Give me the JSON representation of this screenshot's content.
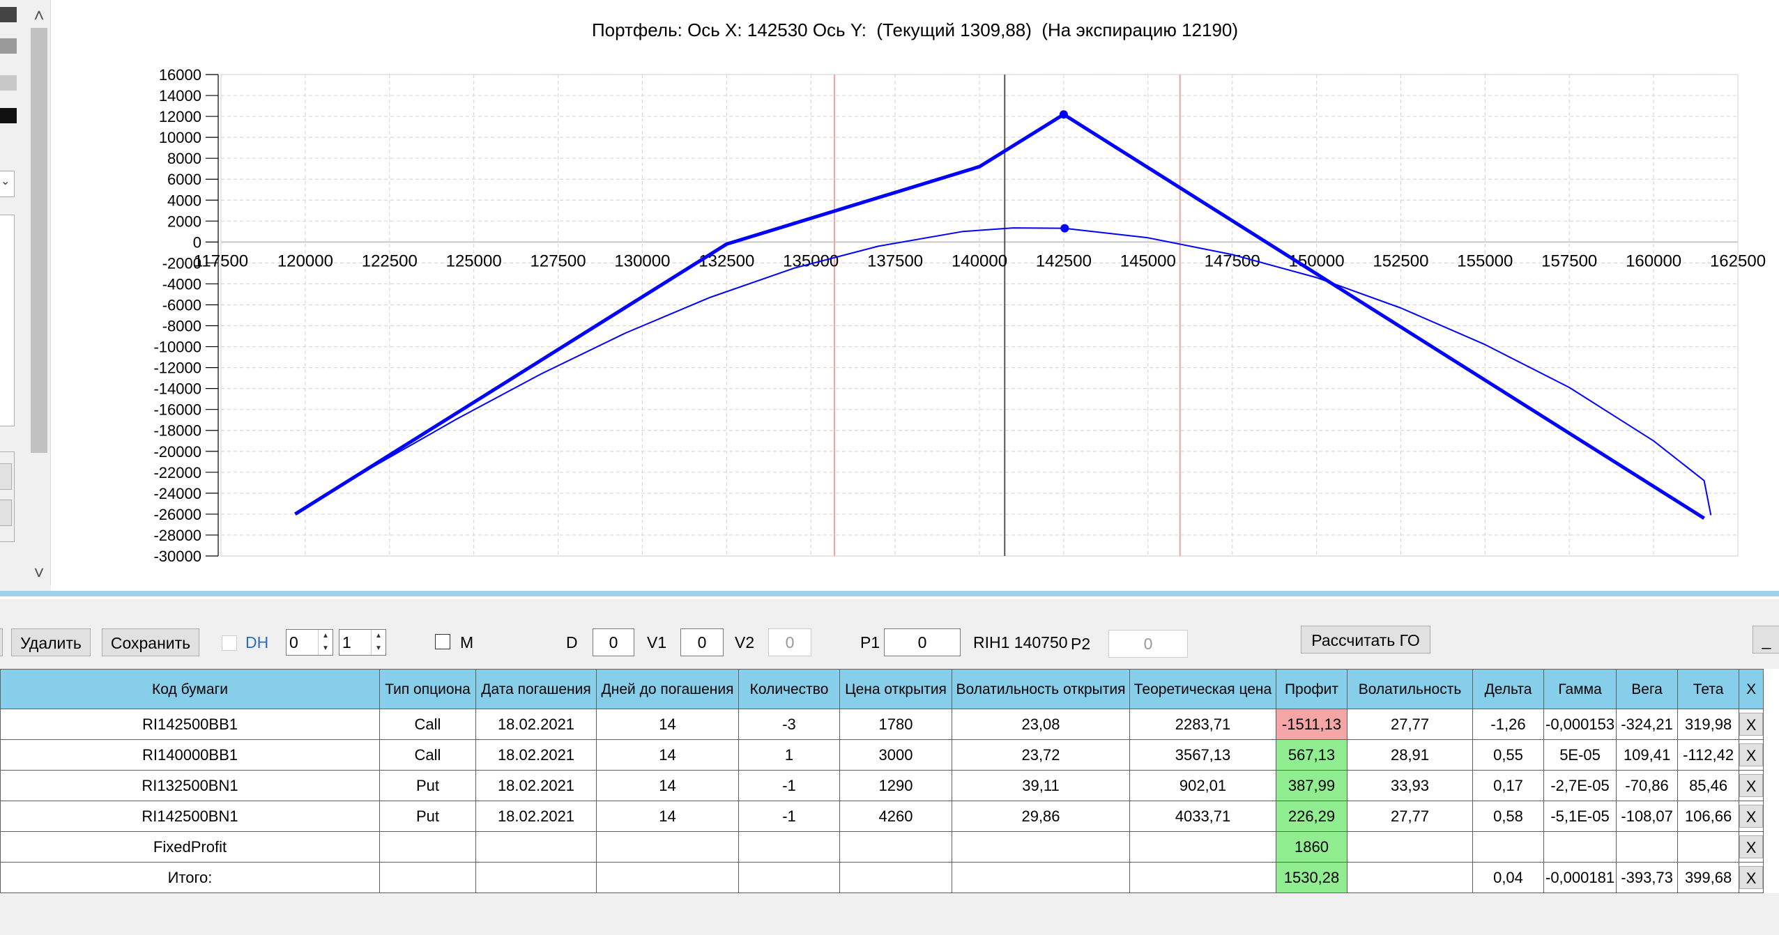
{
  "chart_title": "Портфель: Ось X: 142530 Ось Y:  (Текущий 1309,88)  (На экспирацию 12190)",
  "chart_data": {
    "type": "line",
    "title": "Портфель: Ось X: 142530 Ось Y:  (Текущий 1309,88)  (На экспирацию 12190)",
    "xlim": [
      117500,
      162500
    ],
    "ylim": [
      -30000,
      16000
    ],
    "x_ticks": [
      "117500",
      "120000",
      "122500",
      "125000",
      "127500",
      "130000",
      "132500",
      "135000",
      "137500",
      "140000",
      "142500",
      "145000",
      "147500",
      "150000",
      "152500",
      "155000",
      "157500",
      "160000",
      "162500"
    ],
    "y_ticks": [
      "16000",
      "14000",
      "12000",
      "10000",
      "8000",
      "6000",
      "4000",
      "2000",
      "0",
      "-2000",
      "-4000",
      "-6000",
      "-8000",
      "-10000",
      "-12000",
      "-14000",
      "-16000",
      "-18000",
      "-20000",
      "-22000",
      "-24000",
      "-26000",
      "-28000",
      "-30000"
    ],
    "grid": true,
    "series": [
      {
        "style": "thick",
        "color": "#0000ff",
        "points": [
          [
            119700,
            -26000
          ],
          [
            132500,
            -200
          ],
          [
            140000,
            7200
          ],
          [
            142500,
            12190
          ],
          [
            161500,
            -26400
          ]
        ]
      },
      {
        "style": "thin",
        "color": "#0000ff",
        "points": [
          [
            119700,
            -26000
          ],
          [
            122000,
            -21500
          ],
          [
            124500,
            -16900
          ],
          [
            127000,
            -12600
          ],
          [
            129500,
            -8700
          ],
          [
            132000,
            -5300
          ],
          [
            134500,
            -2500
          ],
          [
            137000,
            -400
          ],
          [
            139500,
            1000
          ],
          [
            141000,
            1350
          ],
          [
            142530,
            1310
          ],
          [
            145000,
            400
          ],
          [
            147500,
            -1200
          ],
          [
            150000,
            -3400
          ],
          [
            152500,
            -6300
          ],
          [
            155000,
            -9800
          ],
          [
            157500,
            -13900
          ],
          [
            160000,
            -19000
          ],
          [
            161500,
            -22800
          ],
          [
            161700,
            -26100
          ]
        ]
      }
    ],
    "markers": [
      [
        142500,
        12190
      ],
      [
        142530,
        1310
      ]
    ],
    "vlines": [
      {
        "x": 135700,
        "color": "#f4a0a0"
      },
      {
        "x": 140750,
        "color": "#555555"
      },
      {
        "x": 145950,
        "color": "#f4a0a0"
      }
    ]
  },
  "toolbar": {
    "delete_label": "Удалить",
    "save_label": "Сохранить",
    "dh_label": "DH",
    "spin1": "0",
    "spin2": "1",
    "m_label": "M",
    "d_label": "D",
    "d_value": "0",
    "v1_label": "V1",
    "v1_value": "0",
    "v2_label": "V2",
    "v2_value": "0",
    "p1_label": "P1",
    "p1_value": "0",
    "underlying_label": "RIH1 140750",
    "p2_label": "P2",
    "p2_value": "0",
    "calc_go_label": "Рассчитать ГО",
    "minimize_label": "_"
  },
  "table": {
    "headers": [
      "Код бумаги",
      "Тип опциона",
      "Дата погашения",
      "Дней до погашения",
      "Количество",
      "Цена открытия",
      "Волатильность открытия",
      "Теоретическая цена",
      "Профит",
      "Волатильность",
      "Дельта",
      "Гамма",
      "Вега",
      "Тета",
      "X"
    ],
    "rows": [
      {
        "cells": [
          "RI142500BB1",
          "Call",
          "18.02.2021",
          "14",
          "-3",
          "1780",
          "23,08",
          "2283,71",
          "-1511,13",
          "27,77",
          "-1,26",
          "-0,000153",
          "-324,21",
          "319,98"
        ],
        "profit_state": "negative",
        "x": "X"
      },
      {
        "cells": [
          "RI140000BB1",
          "Call",
          "18.02.2021",
          "14",
          "1",
          "3000",
          "23,72",
          "3567,13",
          "567,13",
          "28,91",
          "0,55",
          "5E-05",
          "109,41",
          "-112,42"
        ],
        "profit_state": "positive",
        "x": "X"
      },
      {
        "cells": [
          "RI132500BN1",
          "Put",
          "18.02.2021",
          "14",
          "-1",
          "1290",
          "39,11",
          "902,01",
          "387,99",
          "33,93",
          "0,17",
          "-2,7E-05",
          "-70,86",
          "85,46"
        ],
        "profit_state": "positive",
        "x": "X"
      },
      {
        "cells": [
          "RI142500BN1",
          "Put",
          "18.02.2021",
          "14",
          "-1",
          "4260",
          "29,86",
          "4033,71",
          "226,29",
          "27,77",
          "0,58",
          "-5,1E-05",
          "-108,07",
          "106,66"
        ],
        "profit_state": "positive",
        "x": "X"
      },
      {
        "cells": [
          "FixedProfit",
          "",
          "",
          "",
          "",
          "",
          "",
          "",
          "1860",
          "",
          "",
          "",
          "",
          ""
        ],
        "profit_state": "positive",
        "x": "X"
      },
      {
        "cells": [
          "Итого:",
          "",
          "",
          "",
          "",
          "",
          "",
          "",
          "1530,28",
          "",
          "0,04",
          "-0,000181",
          "-393,73",
          "399,68"
        ],
        "profit_state": "positive",
        "x": "X"
      }
    ]
  },
  "colors": {
    "header_bg": "#87ceeb",
    "profit_negative": "#f4a6a6",
    "profit_positive": "#90ee90",
    "payoff_line": "#0000ff",
    "strike_line": "#f4a0a0"
  },
  "left_panel": {
    "scroll_up_icon": "chevron-up-icon",
    "scroll_down_icon": "chevron-down-icon"
  }
}
